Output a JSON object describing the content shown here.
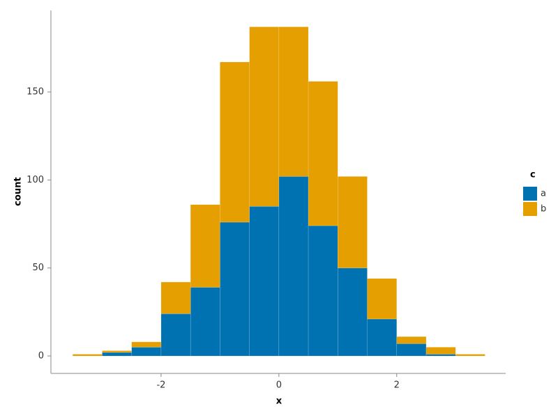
{
  "chart_data": {
    "type": "histogram",
    "stacked": true,
    "x_label": "x",
    "y_label": "count",
    "bins": [
      -3.5,
      -3,
      -2.5,
      -2,
      -1.5,
      -1,
      -0.5,
      0,
      0.5,
      1,
      1.5,
      2,
      2.5,
      3,
      3.5
    ],
    "series": [
      {
        "name": "a",
        "color": "#0072b2",
        "values": [
          0,
          2,
          5,
          24,
          39,
          76,
          85,
          102,
          74,
          50,
          21,
          7,
          1,
          0
        ]
      },
      {
        "name": "b",
        "color": "#e69f00",
        "values": [
          1,
          1,
          3,
          18,
          47,
          91,
          102,
          85,
          82,
          52,
          23,
          4,
          4,
          1
        ]
      }
    ],
    "legend_title": "c",
    "xlim": [
      -3.87,
      3.85
    ],
    "xticks": [
      -2,
      0,
      2
    ],
    "ylim": [
      -9.9,
      196.3
    ],
    "yticks": [
      0,
      50,
      100,
      150
    ],
    "legend_position": "right"
  }
}
